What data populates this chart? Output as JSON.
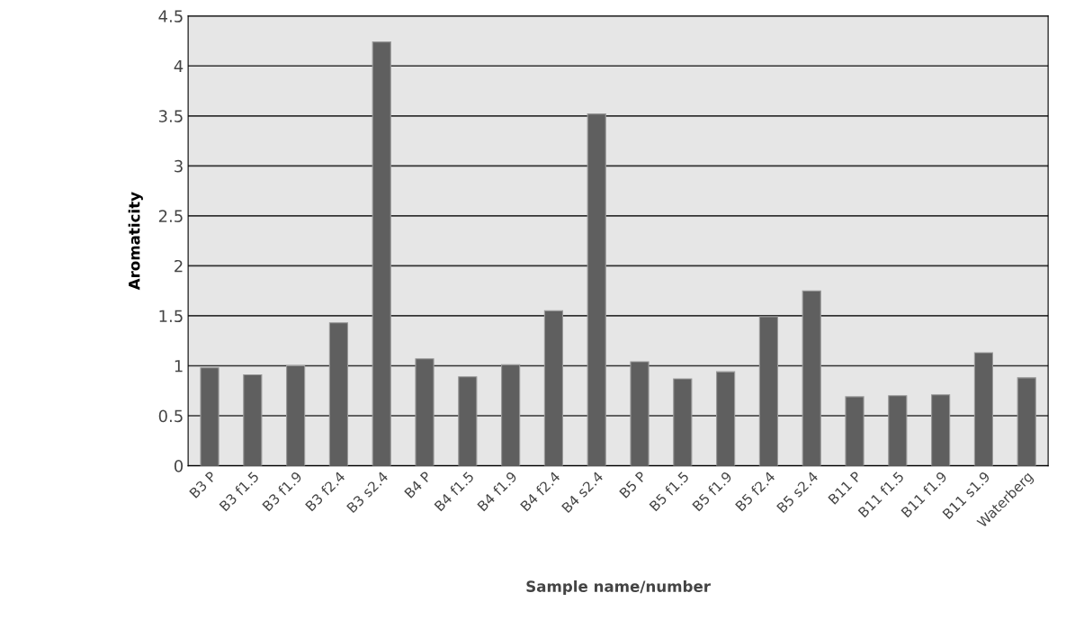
{
  "chart_data": {
    "type": "bar",
    "xlabel": "Sample name/number",
    "ylabel": "Aromaticity",
    "categories": [
      "B3 P",
      "B3 f1.5",
      "B3 f1.9",
      "B3 f2.4",
      "B3 s2.4",
      "B4 P",
      "B4 f1.5",
      "B4 f1.9",
      "B4 f2.4",
      "B4 s2.4",
      "B5 P",
      "B5 f1.5",
      "B5 f1.9",
      "B5 f2.4",
      "B5 s2.4",
      "B11 P",
      "B11 f1.5",
      "B11 f1.9",
      "B11 s1.9",
      "Waterberg"
    ],
    "values": [
      0.98,
      0.91,
      1.0,
      1.43,
      4.24,
      1.07,
      0.89,
      1.01,
      1.55,
      3.52,
      1.04,
      0.87,
      0.94,
      1.49,
      1.75,
      0.69,
      0.7,
      0.71,
      1.13,
      0.88
    ],
    "color": "#5f5f5f",
    "ylim": [
      0,
      4.5
    ],
    "yticks": [
      0,
      0.5,
      1,
      1.5,
      2,
      2.5,
      3,
      3.5,
      4,
      4.5
    ],
    "grid": "y",
    "legend": false
  }
}
